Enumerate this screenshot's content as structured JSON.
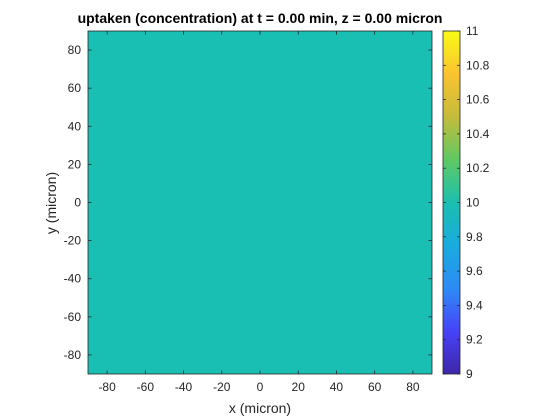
{
  "chart_data": {
    "type": "heatmap",
    "title": "uptaken (concentration) at t = 0.00 min, z = 0.00 micron",
    "xlabel": "x (micron)",
    "ylabel": "y (micron)",
    "xlim": [
      -90,
      90
    ],
    "ylim": [
      -90,
      90
    ],
    "x_ticks": [
      -80,
      -60,
      -40,
      -20,
      0,
      20,
      40,
      60,
      80
    ],
    "y_ticks": [
      80,
      60,
      40,
      20,
      0,
      -20,
      -40,
      -60,
      -80
    ],
    "x_tick_labels": [
      "-80",
      "-60",
      "-40",
      "-20",
      "0",
      "20",
      "40",
      "60",
      "80"
    ],
    "y_tick_labels": [
      "80",
      "60",
      "40",
      "20",
      "0",
      "-20",
      "-40",
      "-60",
      "-80"
    ],
    "field_value": 10,
    "colormap": "parula",
    "colorbar": {
      "limits": [
        9,
        11
      ],
      "ticks": [
        9,
        9.2,
        9.4,
        9.6,
        9.8,
        10,
        10.2,
        10.4,
        10.6,
        10.8,
        11
      ],
      "tick_labels": [
        "9",
        "9.2",
        "9.4",
        "9.6",
        "9.8",
        "10",
        "10.2",
        "10.4",
        "10.6",
        "10.8",
        "11"
      ]
    },
    "field_color": "#1ABFB4",
    "colormap_stops": [
      "#3E26A8",
      "#4743F8",
      "#2D8BF4",
      "#19ABDF",
      "#1BBFB0",
      "#5FC962",
      "#C4BC3C",
      "#FBC330",
      "#F9FB15"
    ],
    "grid": false
  }
}
